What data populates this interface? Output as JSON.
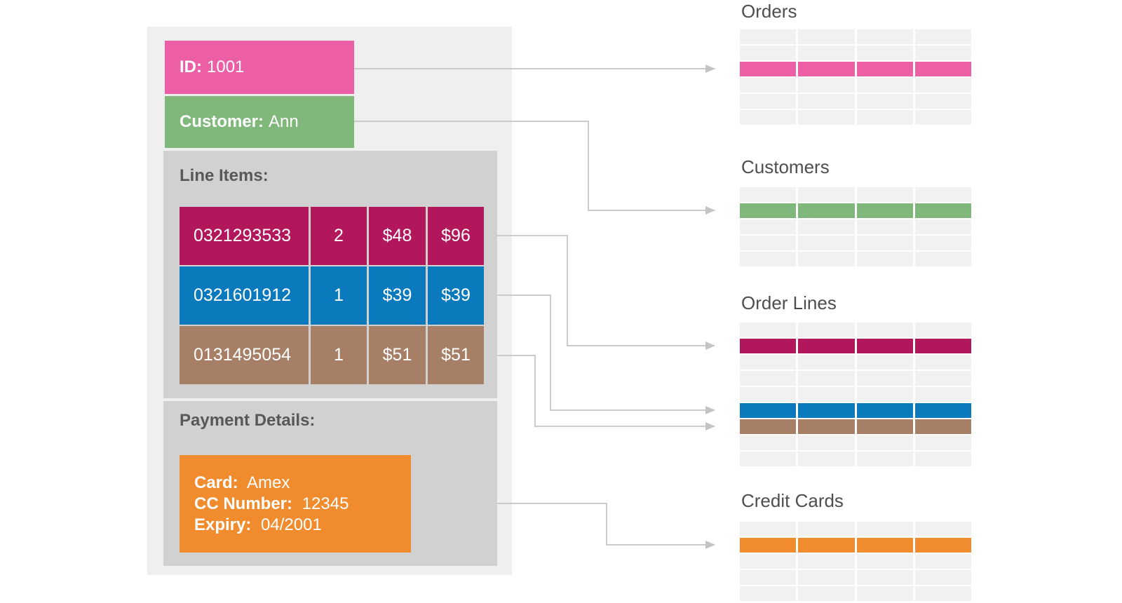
{
  "colors": {
    "pink": "#EC5FA4",
    "green": "#80B87C",
    "crimson": "#B2175C",
    "blue": "#0A7ABD",
    "brown": "#A67F66",
    "orange": "#F18C2E",
    "row-gray": "#F1F1F0",
    "panel": "#F0EFEF",
    "container": "#D2D1D1",
    "line": "#CCCBCB",
    "arrowhead": "#C5C4C4",
    "heading": "#4E4E4E",
    "label": "#58585A"
  },
  "document": {
    "id_label": "ID:",
    "id_value": "1001",
    "customer_label": "Customer:",
    "customer_value": "Ann",
    "line_items_label": "Line Items:",
    "line_items": [
      {
        "sku": "0321293533",
        "qty": "2",
        "price": "$48",
        "total": "$96",
        "color": "crimson"
      },
      {
        "sku": "0321601912",
        "qty": "1",
        "price": "$39",
        "total": "$39",
        "color": "blue"
      },
      {
        "sku": "0131495054",
        "qty": "1",
        "price": "$51",
        "total": "$51",
        "color": "brown"
      }
    ],
    "payment_label": "Payment Details:",
    "payment": {
      "card_label": "Card:",
      "card_value": "Amex",
      "cc_label": "CC Number:",
      "cc_value": "12345",
      "expiry_label": "Expiry:",
      "expiry_value": "04/2001"
    }
  },
  "tables": [
    {
      "title": "Orders",
      "rows": 6,
      "cols": 4,
      "highlights": {
        "2": "pink"
      }
    },
    {
      "title": "Customers",
      "rows": 5,
      "cols": 4,
      "highlights": {
        "1": "green"
      }
    },
    {
      "title": "Order Lines",
      "rows": 9,
      "cols": 4,
      "highlights": {
        "1": "crimson",
        "5": "blue",
        "6": "brown"
      }
    },
    {
      "title": "Credit Cards",
      "rows": 5,
      "cols": 4,
      "highlights": {
        "1": "orange"
      }
    }
  ]
}
